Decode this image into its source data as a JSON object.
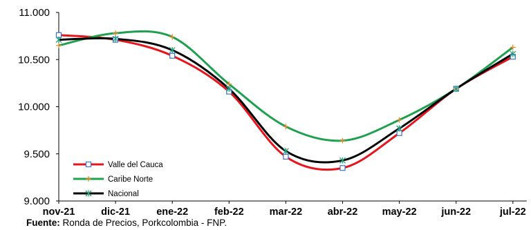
{
  "chart_data": {
    "type": "line",
    "categories": [
      "nov-21",
      "dic-21",
      "ene-22",
      "feb-22",
      "mar-22",
      "abr-22",
      "may-22",
      "jun-22",
      "jul-22"
    ],
    "ylim": [
      9000,
      11000
    ],
    "yticks": [
      9000,
      9500,
      10000,
      10500,
      11000
    ],
    "ytick_labels": [
      "9.000",
      "9.500",
      "10.000",
      "10.500",
      "11.000"
    ],
    "series": [
      {
        "name": "Valle del Cauca",
        "color": "#e8141b",
        "marker": "square",
        "values": [
          10760,
          10710,
          10540,
          10160,
          9470,
          9350,
          9720,
          10190,
          10530
        ]
      },
      {
        "name": "Caribe Norte",
        "color": "#1ea04e",
        "marker": "plus",
        "values": [
          10650,
          10780,
          10740,
          10240,
          9790,
          9640,
          9860,
          10190,
          10630
        ]
      },
      {
        "name": "Nacional",
        "color": "#000000",
        "marker": "star",
        "values": [
          10710,
          10720,
          10600,
          10190,
          9530,
          9430,
          9770,
          10190,
          10560
        ]
      }
    ],
    "legend_position": "bottom-left",
    "grid": false
  },
  "source": {
    "label": "Fuente:",
    "text": " Ronda de Precios, Porkcolombia  - FNP."
  }
}
